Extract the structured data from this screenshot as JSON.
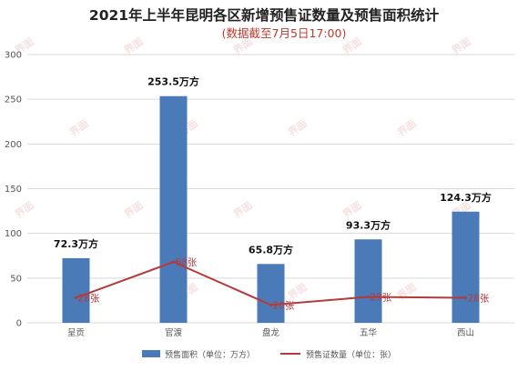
{
  "chart_data": {
    "type": "bar",
    "title": "2021年上半年昆明各区新增预售证数量及预售面积统计",
    "subtitle": "(数据截至7月5日17:00)",
    "categories": [
      "呈贡",
      "官渡",
      "盘龙",
      "五华",
      "西山"
    ],
    "ylim": [
      0,
      300
    ],
    "yticks": [
      0,
      50,
      100,
      150,
      200,
      250,
      300
    ],
    "grid": true,
    "legend_position": "bottom",
    "series": [
      {
        "name": "预售面积（单位：万方）",
        "type": "bar",
        "values": [
          72.3,
          253.5,
          65.8,
          93.3,
          124.3
        ],
        "labels": [
          "72.3万方",
          "253.5万方",
          "65.8万方",
          "93.3万方",
          "124.3万方"
        ]
      },
      {
        "name": "预售证数量（单位：张）",
        "type": "line",
        "values": [
          28,
          68,
          20,
          29,
          28
        ],
        "labels": [
          "28张",
          "68张",
          "20张",
          "29张",
          "28张"
        ]
      }
    ]
  },
  "watermark": "界面",
  "colors": {
    "bar": "#4a7ab8",
    "line": "#b53a3a",
    "subtitle": "#c0392b",
    "grid": "#d9d9d9"
  }
}
